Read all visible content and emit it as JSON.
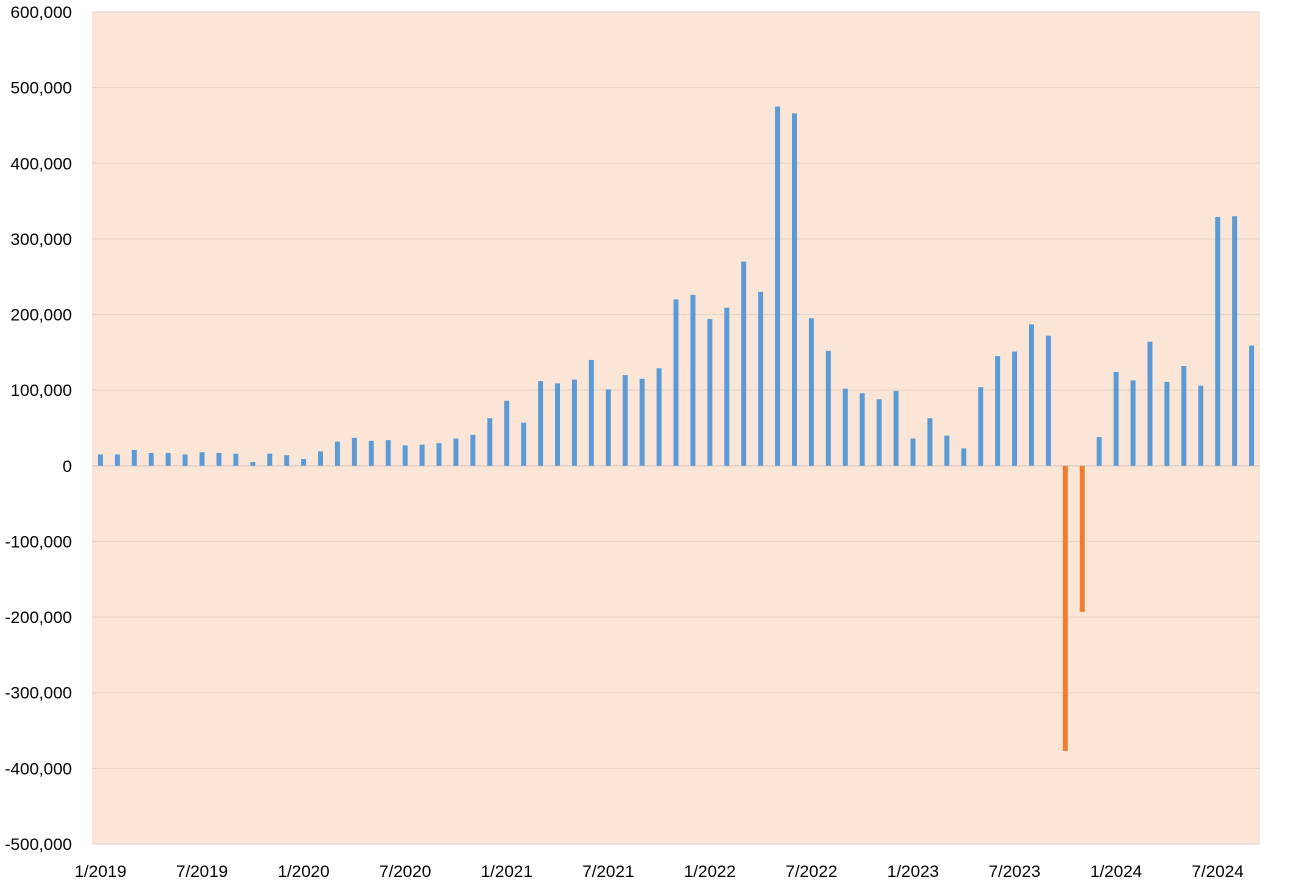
{
  "chart_data": {
    "type": "bar",
    "title": "",
    "xlabel": "",
    "ylabel": "",
    "ylim": [
      -500000,
      600000
    ],
    "yticks": [
      "600,000",
      "500,000",
      "400,000",
      "300,000",
      "200,000",
      "100,000",
      "0",
      "-100,000",
      "-200,000",
      "-300,000",
      "-400,000",
      "-500,000"
    ],
    "ytick_values": [
      600000,
      500000,
      400000,
      300000,
      200000,
      100000,
      0,
      -100000,
      -200000,
      -300000,
      -400000,
      -500000
    ],
    "xtick_labels": [
      "1/2019",
      "7/2019",
      "1/2020",
      "7/2020",
      "1/2021",
      "7/2021",
      "1/2022",
      "7/2022",
      "1/2023",
      "7/2023",
      "1/2024",
      "7/2024"
    ],
    "grid": true,
    "plot_background": "#FBE5D6",
    "positive_color": "#5B9BD5",
    "negative_color": "#ED7D31",
    "categories": [
      "1/2019",
      "2/2019",
      "3/2019",
      "4/2019",
      "5/2019",
      "6/2019",
      "7/2019",
      "8/2019",
      "9/2019",
      "10/2019",
      "11/2019",
      "12/2019",
      "1/2020",
      "2/2020",
      "3/2020",
      "4/2020",
      "5/2020",
      "6/2020",
      "7/2020",
      "8/2020",
      "9/2020",
      "10/2020",
      "11/2020",
      "12/2020",
      "1/2021",
      "2/2021",
      "3/2021",
      "4/2021",
      "5/2021",
      "6/2021",
      "7/2021",
      "8/2021",
      "9/2021",
      "10/2021",
      "11/2021",
      "12/2021",
      "1/2022",
      "2/2022",
      "3/2022",
      "4/2022",
      "5/2022",
      "6/2022",
      "7/2022",
      "8/2022",
      "9/2022",
      "10/2022",
      "11/2022",
      "12/2022",
      "1/2023",
      "2/2023",
      "3/2023",
      "4/2023",
      "5/2023",
      "6/2023",
      "7/2023",
      "8/2023",
      "9/2023",
      "10/2023",
      "11/2023",
      "12/2023",
      "1/2024",
      "2/2024",
      "3/2024",
      "4/2024",
      "5/2024",
      "6/2024",
      "7/2024",
      "8/2024",
      "9/2024"
    ],
    "values": [
      15000,
      15000,
      21000,
      17000,
      17000,
      15000,
      18000,
      17000,
      16000,
      5000,
      16000,
      14000,
      9000,
      19000,
      32000,
      37000,
      33000,
      34000,
      27000,
      28000,
      30000,
      36000,
      41000,
      63000,
      86000,
      57000,
      112000,
      109000,
      114000,
      140000,
      101000,
      120000,
      115000,
      129000,
      220000,
      226000,
      194000,
      209000,
      270000,
      230000,
      475000,
      466000,
      195000,
      152000,
      102000,
      96000,
      88000,
      99000,
      36000,
      63000,
      40000,
      23000,
      104000,
      145000,
      151000,
      187000,
      172000,
      -377000,
      -193000,
      38000,
      124000,
      113000,
      164000,
      111000,
      132000,
      106000,
      329000,
      330000,
      159000
    ]
  }
}
